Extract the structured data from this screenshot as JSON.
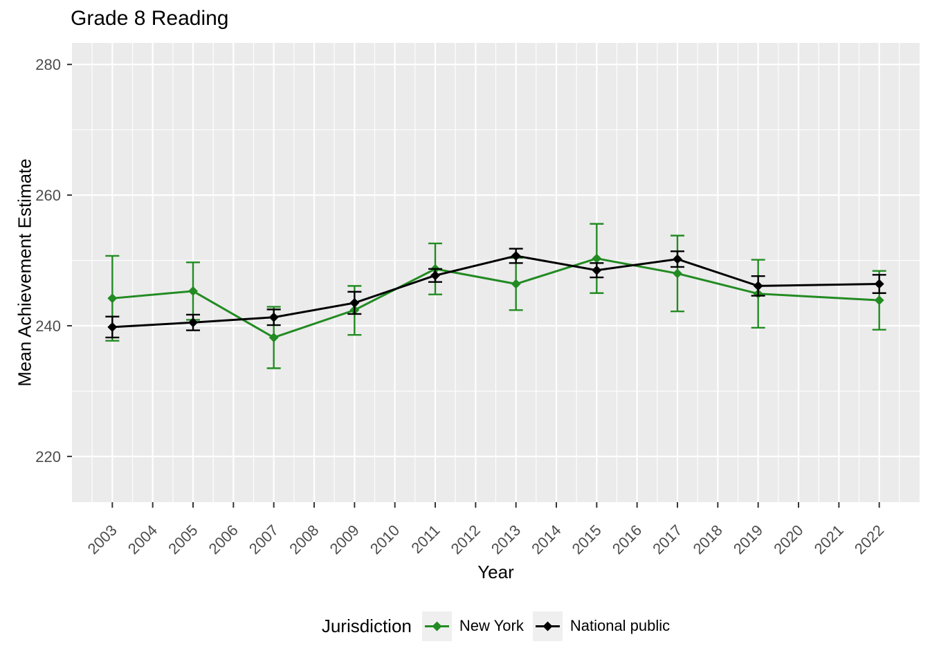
{
  "title": "Grade 8 Reading",
  "axes": {
    "x_label": "Year",
    "y_label": "Mean Achievement Estimate"
  },
  "legend": {
    "title": "Jurisdiction",
    "items": [
      {
        "label": "New York",
        "color": "#228B22"
      },
      {
        "label": "National public",
        "color": "#000000"
      }
    ]
  },
  "colors": {
    "background": "#ffffff",
    "panel": "#ebebeb",
    "grid": "#ffffff",
    "tick_mark": "#333333",
    "tick_text": "#4d4d4d",
    "legend_key_bg": "#efefef"
  },
  "chart_data": {
    "type": "line",
    "title": "Grade 8 Reading",
    "xlabel": "Year",
    "ylabel": "Mean Achievement Estimate",
    "legend_title": "Jurisdiction",
    "legend_position": "bottom",
    "grid": "white major+minor gridlines on grey panel",
    "error_bars": true,
    "marker": "diamond",
    "x_ticks": [
      2003,
      2004,
      2005,
      2006,
      2007,
      2008,
      2009,
      2010,
      2011,
      2012,
      2013,
      2014,
      2015,
      2016,
      2017,
      2018,
      2019,
      2020,
      2021,
      2022
    ],
    "y_ticks": [
      220,
      240,
      260,
      280
    ],
    "xlim": [
      2002,
      2023
    ],
    "ylim": [
      213,
      283.3
    ],
    "x": [
      2003,
      2005,
      2007,
      2009,
      2011,
      2013,
      2015,
      2017,
      2019,
      2022
    ],
    "series": [
      {
        "name": "New York",
        "color": "#228B22",
        "values": [
          244.2,
          245.3,
          238.2,
          242.4,
          248.7,
          246.4,
          250.3,
          248.0,
          244.9,
          243.9
        ],
        "ci_low": [
          237.7,
          240.9,
          233.5,
          238.6,
          244.8,
          242.4,
          245.0,
          242.2,
          239.7,
          239.4
        ],
        "ci_high": [
          250.7,
          249.7,
          242.9,
          246.1,
          252.6,
          250.4,
          255.6,
          253.8,
          250.1,
          248.4
        ]
      },
      {
        "name": "National public",
        "color": "#000000",
        "values": [
          239.8,
          240.5,
          241.3,
          243.5,
          247.7,
          250.7,
          248.5,
          250.2,
          246.1,
          246.4
        ],
        "ci_low": [
          238.2,
          239.3,
          240.1,
          241.8,
          246.7,
          249.6,
          247.4,
          249.0,
          244.6,
          245.0
        ],
        "ci_high": [
          241.4,
          241.7,
          242.5,
          245.2,
          248.7,
          251.8,
          249.6,
          251.4,
          247.6,
          247.8
        ]
      }
    ]
  }
}
